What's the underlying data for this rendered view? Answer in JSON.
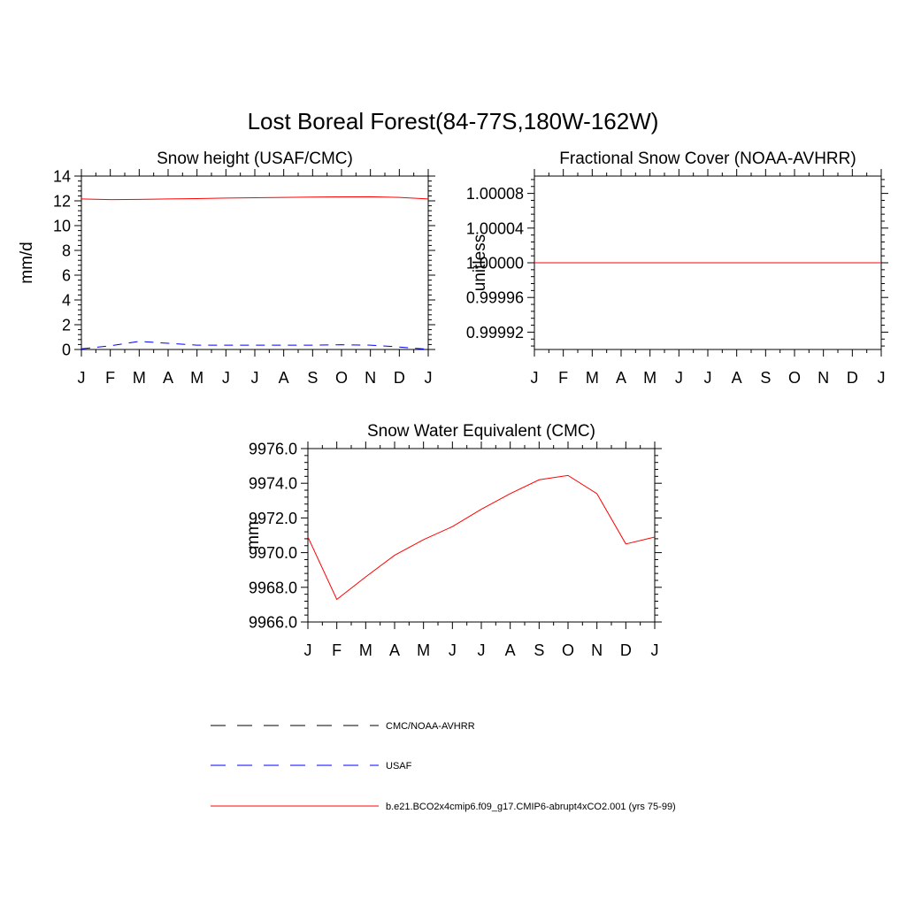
{
  "figure": {
    "title": "Lost Boreal Forest(84-77S,180W-162W)"
  },
  "chart_data": [
    {
      "type": "line",
      "title": "Snow height (USAF/CMC)",
      "xlabel": "",
      "ylabel": "mm/d",
      "categories": [
        "J",
        "F",
        "M",
        "A",
        "M",
        "J",
        "J",
        "A",
        "S",
        "O",
        "N",
        "D",
        "J"
      ],
      "ylim": [
        0,
        14
      ],
      "yticks": [
        0,
        2,
        4,
        6,
        8,
        10,
        12,
        14
      ],
      "ytick_labels": [
        "0",
        "2",
        "4",
        "6",
        "8",
        "10",
        "12",
        "14"
      ],
      "series": [
        {
          "name": "b.e21.BCO2x4cmip6.f09_g17.CMIP6-abrupt4xCO2.001 (yrs 75-99)",
          "color": "#ff0000",
          "dash": "solid",
          "values": [
            12.15,
            12.1,
            12.12,
            12.15,
            12.18,
            12.22,
            12.25,
            12.28,
            12.3,
            12.32,
            12.33,
            12.28,
            12.15
          ]
        },
        {
          "name": "USAF",
          "color": "#0000ff",
          "dash": "dashed",
          "values": [
            0.05,
            0.3,
            0.65,
            0.5,
            0.35,
            0.35,
            0.35,
            0.35,
            0.35,
            0.38,
            0.35,
            0.2,
            0.02
          ]
        }
      ]
    },
    {
      "type": "line",
      "title": "Fractional Snow Cover (NOAA-AVHRR)",
      "xlabel": "",
      "ylabel": "unitless",
      "categories": [
        "J",
        "F",
        "M",
        "A",
        "M",
        "J",
        "J",
        "A",
        "S",
        "O",
        "N",
        "D",
        "J"
      ],
      "ylim": [
        0.9999,
        1.0001
      ],
      "yticks": [
        0.99992,
        0.99996,
        1.0,
        1.00004,
        1.00008
      ],
      "ytick_labels": [
        "0.99992",
        "0.99996",
        "1.00000",
        "1.00004",
        "1.00008"
      ],
      "series": [
        {
          "name": "b.e21.BCO2x4cmip6.f09_g17.CMIP6-abrupt4xCO2.001 (yrs 75-99)",
          "color": "#ff0000",
          "dash": "solid",
          "values": [
            1.0,
            1.0,
            1.0,
            1.0,
            1.0,
            1.0,
            1.0,
            1.0,
            1.0,
            1.0,
            1.0,
            1.0,
            1.0
          ]
        }
      ]
    },
    {
      "type": "line",
      "title": "Snow Water Equivalent (CMC)",
      "xlabel": "",
      "ylabel": "mm",
      "categories": [
        "J",
        "F",
        "M",
        "A",
        "M",
        "J",
        "J",
        "A",
        "S",
        "O",
        "N",
        "D",
        "J"
      ],
      "ylim": [
        9966.0,
        9976.0
      ],
      "yticks": [
        9966.0,
        9968.0,
        9970.0,
        9972.0,
        9974.0,
        9976.0
      ],
      "ytick_labels": [
        "9966.0",
        "9968.0",
        "9970.0",
        "9972.0",
        "9974.0",
        "9976.0"
      ],
      "series": [
        {
          "name": "b.e21.BCO2x4cmip6.f09_g17.CMIP6-abrupt4xCO2.001 (yrs 75-99)",
          "color": "#ff0000",
          "dash": "solid",
          "values": [
            9970.9,
            9967.3,
            9968.6,
            9969.85,
            9970.75,
            9971.5,
            9972.5,
            9973.4,
            9974.2,
            9974.45,
            9973.4,
            9970.5,
            9970.9
          ]
        }
      ]
    }
  ],
  "legend": {
    "placement": "bottom",
    "entries": [
      {
        "label": "CMC/NOAA-AVHRR",
        "color": "#000000",
        "dash": "dashed"
      },
      {
        "label": "USAF",
        "color": "#0000ff",
        "dash": "dashed"
      },
      {
        "label": "b.e21.BCO2x4cmip6.f09_g17.CMIP6-abrupt4xCO2.001 (yrs 75-99)",
        "color": "#ff0000",
        "dash": "solid"
      }
    ]
  }
}
